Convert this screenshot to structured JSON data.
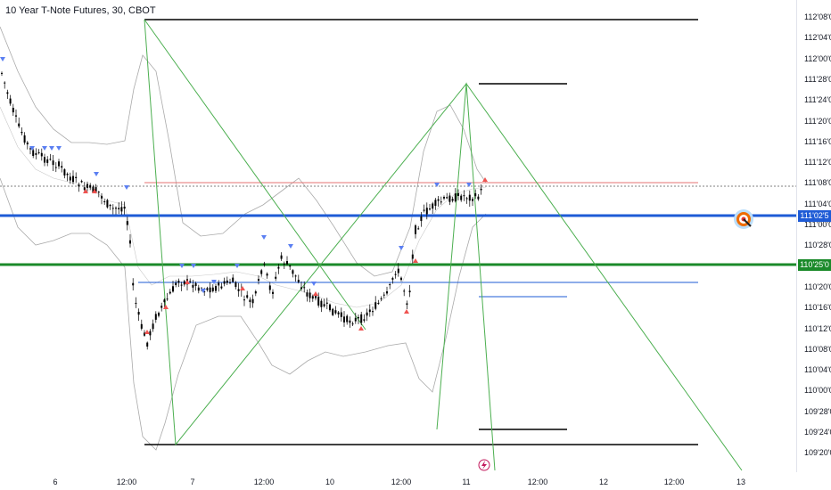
{
  "header": {
    "title": "10 Year T-Note Futures, 30, CBOT"
  },
  "colors": {
    "up_triangle": "#ef5350",
    "down_triangle": "#5b7ff2",
    "blue_line": "#1e5bd6",
    "green_line": "#1b8a2a",
    "red_line": "#e57373",
    "zigzag": "#4caf50",
    "bands": "#aaaaaa"
  },
  "price_scale": {
    "ticks": [
      "112'08'0",
      "112'04'0",
      "112'00'0",
      "111'28'0",
      "111'24'0",
      "111'20'0",
      "111'16'0",
      "111'12'0",
      "111'08'0",
      "111'04'0",
      "111'00'0",
      "110'28'0",
      "110'24'0",
      "110'20'0",
      "110'16'0",
      "110'12'0",
      "110'08'0",
      "110'04'0",
      "110'00'0",
      "109'28'0",
      "109'24'0",
      "109'20'0"
    ],
    "badge_blue": "111'02'5",
    "badge_green": "110'25'0"
  },
  "time_axis": {
    "ticks": [
      "6",
      "12:00",
      "7",
      "12:00",
      "10",
      "12:00",
      "11",
      "12:00",
      "12",
      "12:00",
      "13"
    ]
  },
  "icons": {
    "target": "target-icon",
    "lightning": "lightning-icon"
  }
}
